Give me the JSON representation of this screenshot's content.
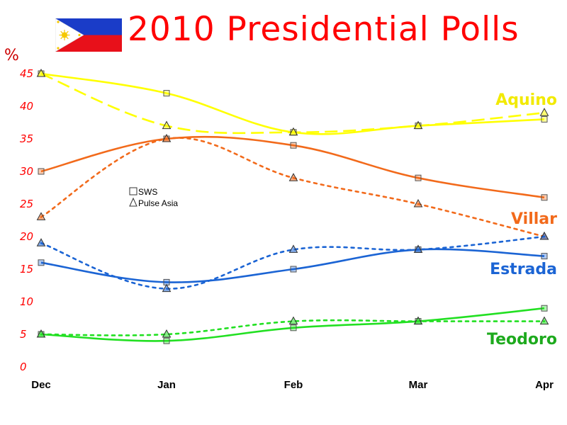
{
  "title": "2010 Presidential Polls",
  "chart_data": {
    "type": "line",
    "title": "2010 Presidential Polls",
    "ylabel": "%",
    "xlabel": "",
    "categories": [
      "Dec",
      "Jan",
      "Feb",
      "Mar",
      "Apr"
    ],
    "ylim": [
      0,
      45
    ],
    "yticks": [
      0,
      5,
      10,
      15,
      20,
      25,
      30,
      35,
      40,
      45
    ],
    "grid": false,
    "legend": {
      "position": "center-left",
      "entries": [
        {
          "marker": "square",
          "label": "SWS",
          "style": "solid"
        },
        {
          "marker": "triangle",
          "label": "Pulse Asia",
          "style": "dashed"
        }
      ]
    },
    "candidates": [
      {
        "name": "Aquino",
        "color": "#ffff00",
        "labelColor": "#f2ea00",
        "pulse_dash": "dashed",
        "sws": [
          45,
          42,
          36,
          37,
          38
        ],
        "pulse_asia": [
          45,
          37,
          36,
          37,
          39
        ]
      },
      {
        "name": "Villar",
        "color": "#f26a1b",
        "labelColor": "#f26a1b",
        "pulse_dash": "dotted",
        "sws": [
          30,
          35,
          34,
          29,
          26
        ],
        "pulse_asia": [
          23,
          35,
          29,
          25,
          20
        ]
      },
      {
        "name": "Estrada",
        "color": "#1b64d4",
        "labelColor": "#1b64d4",
        "pulse_dash": "dotted",
        "sws": [
          16,
          13,
          15,
          18,
          17
        ],
        "pulse_asia": [
          19,
          12,
          18,
          18,
          20
        ]
      },
      {
        "name": "Teodoro",
        "color": "#22e022",
        "labelColor": "#1eaa1e",
        "pulse_dash": "dotted",
        "sws": [
          5,
          4,
          6,
          7,
          9
        ],
        "pulse_asia": [
          5,
          5,
          7,
          7,
          7
        ]
      }
    ]
  }
}
